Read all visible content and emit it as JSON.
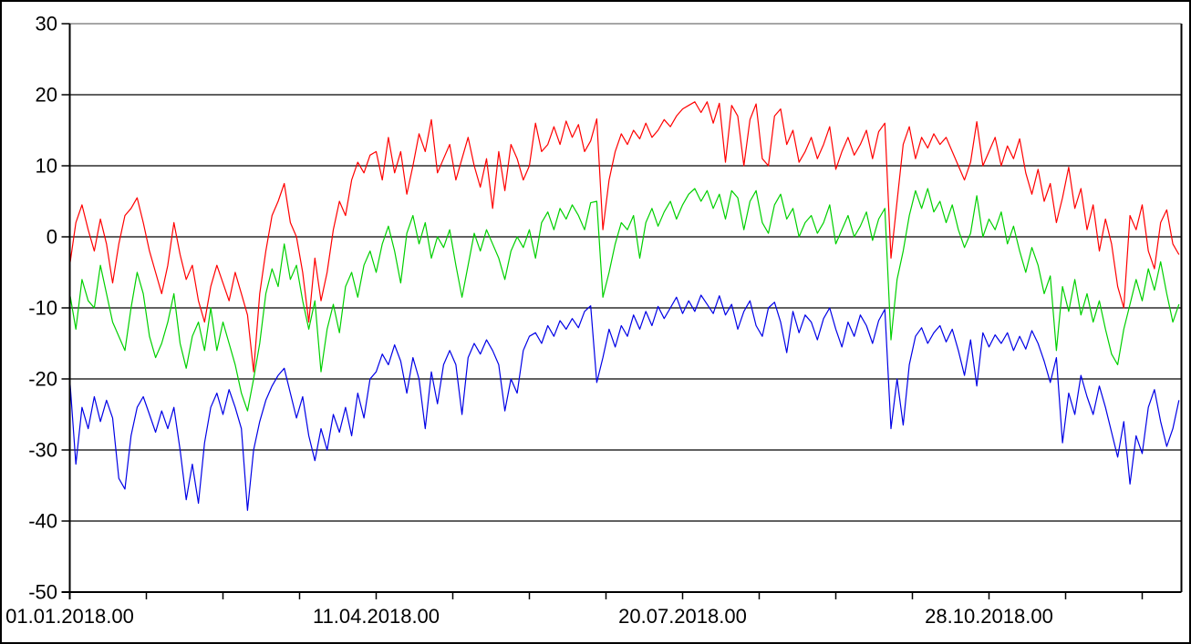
{
  "chart_data": {
    "type": "line",
    "title": "",
    "xlabel": "",
    "ylabel": "",
    "grid": true,
    "legend": "none",
    "y_axis": {
      "min": -50,
      "max": 30,
      "tick_step": 10,
      "tick_labels": [
        "30",
        "20",
        "10",
        "0",
        "-10",
        "-20",
        "-30",
        "-40",
        "-50"
      ]
    },
    "x_axis": {
      "start_day": 0,
      "tick_step_days": 25,
      "tick_count": 15,
      "total_days": 363,
      "labeled_ticks": [
        {
          "tick_index": 0,
          "label": "01.01.2018.00"
        },
        {
          "tick_index": 4,
          "label": "11.04.2018.00"
        },
        {
          "tick_index": 8,
          "label": "20.07.2018.00"
        },
        {
          "tick_index": 12,
          "label": "28.10.2018.00"
        }
      ]
    },
    "sampling": {
      "start_day": 0,
      "step_days": 2
    },
    "style": {
      "background": "#ffffff",
      "grid_color": "#000000",
      "axis_color": "#000000",
      "top_border_color": "#888888",
      "frame_color": "#000000"
    },
    "series": [
      {
        "name": "red-series",
        "color": "#ff0000",
        "values": [
          -4,
          2,
          4.5,
          1,
          -2,
          2.5,
          -1,
          -6.5,
          -1,
          3,
          4,
          5.5,
          2,
          -2,
          -5,
          -8,
          -4,
          2,
          -2.5,
          -6,
          -4,
          -9,
          -12,
          -7,
          -4,
          -6.5,
          -9,
          -5,
          -8,
          -11,
          -19,
          -8,
          -2,
          3,
          5,
          7.5,
          2,
          0,
          -5,
          -12,
          -3,
          -9,
          -5,
          1,
          5,
          3,
          8,
          10.5,
          9,
          11.5,
          12,
          8,
          14,
          9,
          12,
          6,
          10,
          14.5,
          12,
          16.5,
          9,
          11,
          13,
          8,
          11,
          14,
          10,
          7,
          11,
          4,
          12,
          6.5,
          13,
          11,
          8,
          10,
          16,
          12,
          13,
          15.5,
          13,
          16.3,
          14,
          15.8,
          12,
          13.5,
          16.6,
          1,
          8,
          12,
          14.5,
          13,
          15,
          13.8,
          16,
          14,
          15,
          16.5,
          15.5,
          17,
          18,
          18.5,
          19,
          17.5,
          19,
          16,
          18.8,
          10.5,
          18.5,
          17,
          10,
          16.5,
          18.7,
          11,
          10,
          17,
          18,
          13,
          15,
          10.5,
          12,
          14,
          11,
          13,
          15.5,
          9.5,
          12,
          14,
          11.5,
          13,
          15,
          11,
          14.8,
          16,
          -3,
          5,
          13,
          15.5,
          11,
          14,
          12.5,
          14.5,
          13,
          14,
          12,
          10,
          8,
          10.5,
          16.2,
          10,
          12,
          14,
          10,
          12.8,
          11,
          13.8,
          9,
          6,
          9.5,
          5,
          7.5,
          2,
          5.5,
          9.8,
          4,
          6.8,
          1,
          4.5,
          -2,
          2.5,
          -1,
          -7,
          -10,
          3,
          1,
          4.5,
          -2,
          -4.5,
          2,
          3.8,
          -1,
          -2.5
        ]
      },
      {
        "name": "green-series",
        "color": "#00d000",
        "values": [
          -8,
          -13,
          -6,
          -9,
          -10,
          -4,
          -8,
          -12,
          -14,
          -16,
          -10,
          -5,
          -8,
          -14,
          -17,
          -15,
          -12,
          -8,
          -15,
          -18.5,
          -14,
          -12,
          -16,
          -10,
          -16,
          -12,
          -15,
          -18,
          -22,
          -24.5,
          -20,
          -15,
          -8,
          -4.5,
          -7,
          -1,
          -6,
          -4,
          -9,
          -13,
          -9,
          -19,
          -13,
          -9.5,
          -13.5,
          -7,
          -5,
          -8.5,
          -4,
          -2,
          -5,
          -1,
          1.5,
          -2,
          -6.5,
          0.5,
          3,
          -1,
          2,
          -3,
          0,
          -1.5,
          1,
          -4,
          -8.5,
          -4,
          0.5,
          -2,
          1,
          -1,
          -3,
          -6,
          -2,
          0,
          -1.5,
          1,
          -3,
          2,
          3.5,
          1,
          4,
          2.5,
          4.5,
          3,
          1,
          4.8,
          5,
          -8.5,
          -5,
          -1,
          2,
          1,
          3,
          -3,
          2,
          4,
          1.5,
          3.5,
          5,
          2.5,
          4.5,
          6,
          6.8,
          5,
          6.5,
          4,
          6,
          2.5,
          6.5,
          5.5,
          1,
          5,
          6.5,
          2,
          0.5,
          4.5,
          6,
          2.5,
          4,
          0,
          2,
          3,
          0.5,
          2,
          4.5,
          -1,
          1,
          3,
          0,
          1.5,
          3.5,
          -0.5,
          2.5,
          4,
          -14.5,
          -6,
          -2,
          3,
          6.5,
          4,
          6.8,
          3.5,
          5,
          2,
          4.5,
          1,
          -1.5,
          0.5,
          5.8,
          0,
          2.5,
          1,
          3.5,
          -1,
          1.5,
          -2,
          -5,
          -1.5,
          -4,
          -8,
          -5.5,
          -16,
          -7,
          -10.5,
          -6,
          -11,
          -8,
          -12,
          -9,
          -13,
          -16.5,
          -18,
          -13,
          -9.5,
          -6,
          -9,
          -4.5,
          -7.5,
          -3.5,
          -8,
          -12,
          -9.5
        ]
      },
      {
        "name": "blue-series",
        "color": "#0000e6",
        "values": [
          -20,
          -32,
          -24,
          -27,
          -22.5,
          -26,
          -23,
          -25.5,
          -34,
          -35.5,
          -28,
          -24,
          -22.5,
          -25,
          -27.5,
          -24.5,
          -27,
          -24,
          -30,
          -37,
          -32,
          -37.5,
          -29,
          -24,
          -22,
          -25,
          -21.5,
          -24,
          -27,
          -38.5,
          -30,
          -26,
          -23,
          -21,
          -19.5,
          -18.5,
          -22,
          -25.5,
          -22.5,
          -28,
          -31.5,
          -27,
          -30,
          -25,
          -27.5,
          -24,
          -28,
          -22,
          -25.5,
          -20,
          -19,
          -16.5,
          -18,
          -15.2,
          -17.5,
          -22,
          -17,
          -20,
          -27,
          -19,
          -23.5,
          -18,
          -16,
          -18,
          -25,
          -17,
          -15,
          -16.5,
          -14.5,
          -16,
          -18,
          -24.5,
          -20,
          -22,
          -16,
          -14,
          -13.5,
          -15,
          -12.5,
          -14,
          -11.8,
          -13,
          -11.5,
          -12.8,
          -10.5,
          -9.7,
          -20.5,
          -17,
          -13,
          -15.5,
          -12.5,
          -14,
          -11,
          -13,
          -10.5,
          -12.5,
          -9.8,
          -11.5,
          -10,
          -8.5,
          -10.8,
          -9,
          -10.5,
          -8.2,
          -9.5,
          -10.8,
          -8.3,
          -11,
          -9.5,
          -13,
          -10.5,
          -9,
          -12.5,
          -14,
          -10,
          -9.2,
          -12,
          -16.3,
          -10.5,
          -13.5,
          -11,
          -12,
          -14.5,
          -11.5,
          -10,
          -13,
          -15.5,
          -12,
          -14,
          -11,
          -12.5,
          -15,
          -11.8,
          -10.2,
          -27,
          -20,
          -26.5,
          -18,
          -14,
          -12.8,
          -15,
          -13.5,
          -12.5,
          -14.8,
          -13,
          -16,
          -19.5,
          -14.5,
          -21,
          -13.5,
          -15.5,
          -13.8,
          -15,
          -13.5,
          -16,
          -14,
          -15.8,
          -13.2,
          -15,
          -17.5,
          -20.5,
          -17,
          -29,
          -22,
          -25,
          -19.5,
          -22.5,
          -25,
          -21,
          -24,
          -27.5,
          -31,
          -26,
          -34.8,
          -28,
          -30.5,
          -24,
          -21.5,
          -26,
          -29.5,
          -27,
          -23
        ]
      }
    ]
  }
}
